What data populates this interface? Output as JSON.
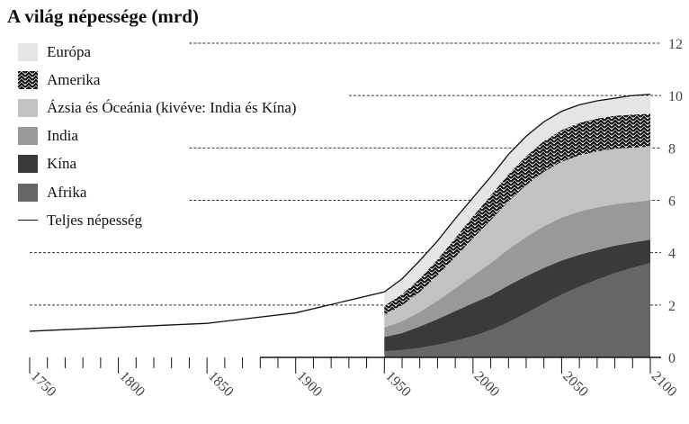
{
  "chart_data": {
    "type": "area",
    "title": "A világ népessége (mrd)",
    "xlabel": "",
    "ylabel": "",
    "xlim": [
      1750,
      2100
    ],
    "ylim": [
      0,
      12
    ],
    "x_ticks": [
      1750,
      1800,
      1850,
      1900,
      1950,
      2000,
      2050,
      2100
    ],
    "y_ticks": [
      0,
      2,
      4,
      6,
      8,
      10,
      12
    ],
    "stacked": true,
    "legend_position": "top-left",
    "grid": "dashed horizontal",
    "x": [
      1950,
      1960,
      1970,
      1980,
      1990,
      2000,
      2010,
      2020,
      2030,
      2040,
      2050,
      2060,
      2070,
      2080,
      2090,
      2100
    ],
    "series": [
      {
        "name": "Afrika",
        "color": "#666666",
        "values": [
          0.23,
          0.28,
          0.36,
          0.48,
          0.63,
          0.81,
          1.04,
          1.34,
          1.69,
          2.05,
          2.4,
          2.7,
          2.97,
          3.22,
          3.42,
          3.6
        ]
      },
      {
        "name": "Kína",
        "color": "#3a3a3a",
        "values": [
          0.55,
          0.65,
          0.82,
          0.98,
          1.14,
          1.26,
          1.33,
          1.41,
          1.41,
          1.37,
          1.3,
          1.22,
          1.13,
          1.05,
          0.97,
          0.9
        ]
      },
      {
        "name": "India",
        "color": "#999999",
        "values": [
          0.36,
          0.45,
          0.55,
          0.7,
          0.87,
          1.05,
          1.23,
          1.38,
          1.5,
          1.59,
          1.64,
          1.65,
          1.63,
          1.59,
          1.54,
          1.5
        ]
      },
      {
        "name": "Ázsia és Óceánia (kivéve: India és Kína)",
        "color": "#c2c2c2",
        "values": [
          0.48,
          0.61,
          0.77,
          0.97,
          1.19,
          1.43,
          1.64,
          1.83,
          1.98,
          2.08,
          2.13,
          2.15,
          2.14,
          2.11,
          2.08,
          2.05
        ]
      },
      {
        "name": "Amerika",
        "color": "pattern-chevron",
        "values": [
          0.34,
          0.42,
          0.51,
          0.61,
          0.72,
          0.84,
          0.94,
          1.03,
          1.11,
          1.17,
          1.21,
          1.24,
          1.25,
          1.26,
          1.26,
          1.26
        ]
      },
      {
        "name": "Európa",
        "color": "#e5e5e5",
        "values": [
          0.55,
          0.61,
          0.66,
          0.69,
          0.72,
          0.73,
          0.74,
          0.75,
          0.74,
          0.73,
          0.71,
          0.69,
          0.67,
          0.66,
          0.65,
          0.64
        ]
      }
    ],
    "total": {
      "name": "Teljes népesség",
      "x": [
        1750,
        1800,
        1850,
        1900,
        1950,
        1960,
        1970,
        1980,
        1990,
        2000,
        2010,
        2020,
        2030,
        2040,
        2050,
        2060,
        2070,
        2080,
        2090,
        2100
      ],
      "values": [
        1.0,
        1.15,
        1.3,
        1.7,
        2.5,
        3.0,
        3.7,
        4.45,
        5.3,
        6.1,
        6.9,
        7.75,
        8.45,
        9.0,
        9.4,
        9.65,
        9.8,
        9.9,
        10.0,
        10.05
      ]
    },
    "legend": [
      {
        "name": "Európa",
        "swatch": "#e5e5e5"
      },
      {
        "name": "Amerika",
        "swatch": "pattern-chevron"
      },
      {
        "name": "Ázsia és Óceánia (kivéve: India és Kína)",
        "swatch": "#c2c2c2"
      },
      {
        "name": "India",
        "swatch": "#999999"
      },
      {
        "name": "Kína",
        "swatch": "#3a3a3a"
      },
      {
        "name": "Afrika",
        "swatch": "#666666"
      },
      {
        "name": "Teljes népesség",
        "swatch": "line"
      }
    ]
  }
}
